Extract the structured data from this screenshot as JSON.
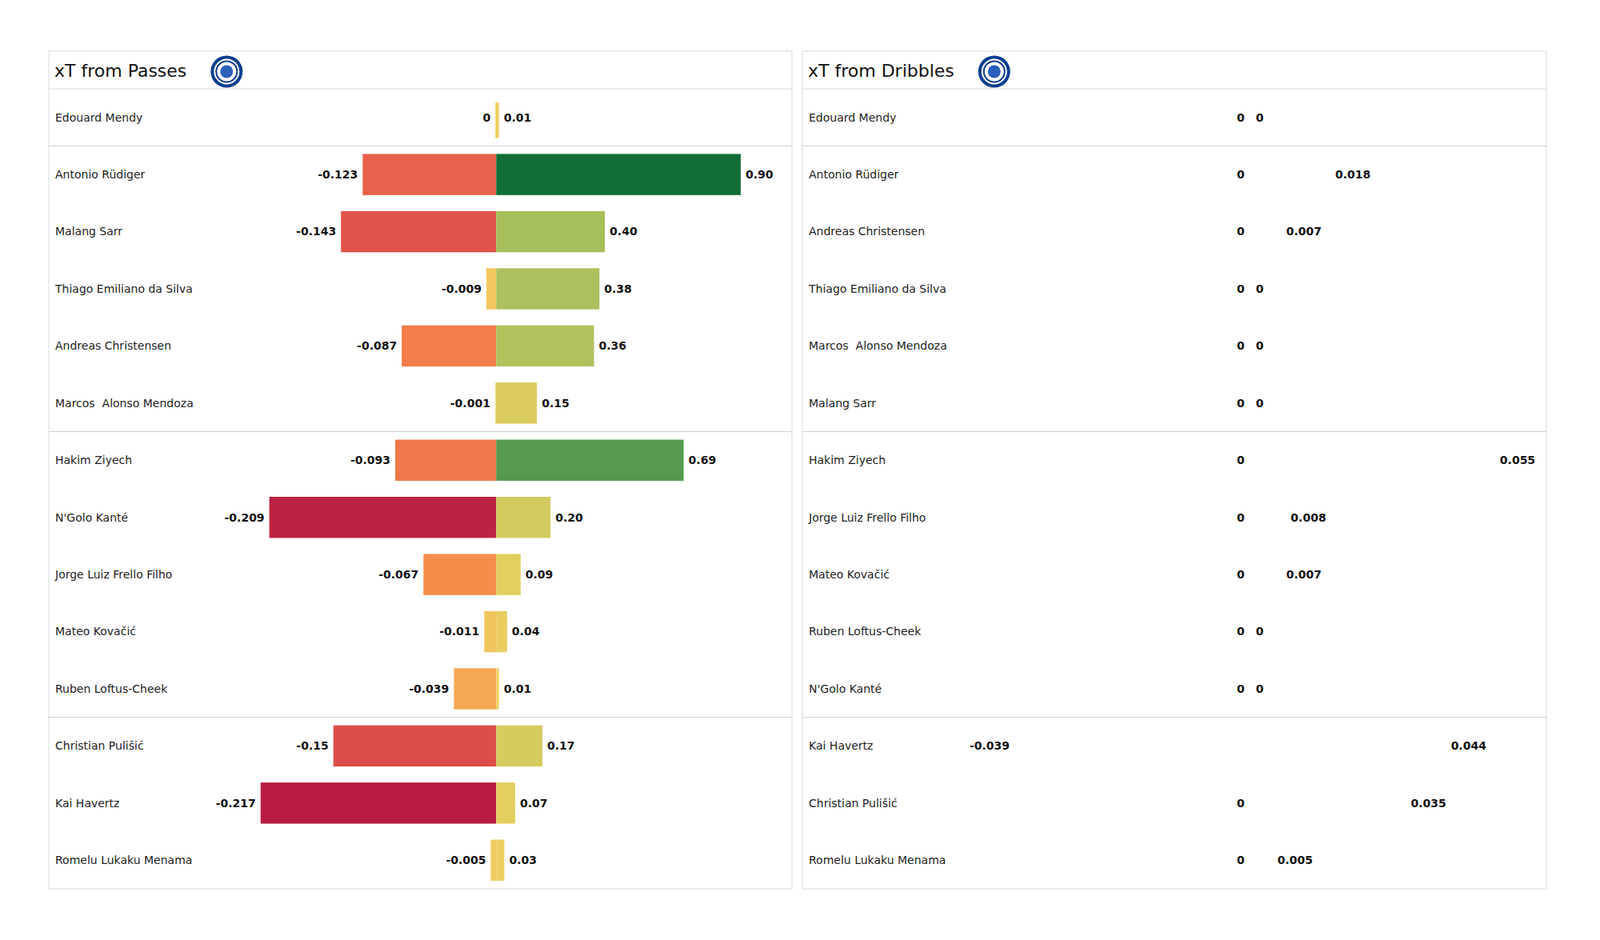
{
  "chart_data": [
    {
      "type": "bar",
      "orientation": "horizontal",
      "title": "xT from Passes",
      "data_labels": true,
      "tick_labels": "y",
      "categories": [
        "Edouard Mendy",
        "Antonio Rüdiger",
        "Malang Sarr",
        "Thiago Emiliano da Silva",
        "Andreas Christensen",
        "Marcos  Alonso Mendoza",
        "Hakim Ziyech",
        "N'Golo Kanté",
        "Jorge Luiz Frello Filho",
        "Mateo Kovačić",
        "Ruben Loftus-Cheek",
        "Christian Pulišić",
        "Kai Havertz",
        "Romelu Lukaku Menama"
      ],
      "series": [
        {
          "values": [
            0,
            -0.123,
            -0.143,
            -0.009,
            -0.087,
            -0.001,
            -0.093,
            -0.209,
            -0.067,
            -0.011,
            -0.039,
            -0.15,
            -0.217,
            -0.005
          ],
          "value_labels": [
            "0",
            "-0.123",
            "-0.143",
            "-0.009",
            "-0.087",
            "-0.001",
            "-0.093",
            "-0.209",
            "-0.067",
            "-0.011",
            "-0.039",
            "-0.15",
            "-0.217",
            "-0.005"
          ]
        },
        {
          "values": [
            0.01,
            0.9,
            0.4,
            0.38,
            0.36,
            0.15,
            0.69,
            0.2,
            0.09,
            0.04,
            0.01,
            0.17,
            0.07,
            0.03
          ],
          "value_labels": [
            "0.01",
            "0.90",
            "0.40",
            "0.38",
            "0.36",
            "0.15",
            "0.69",
            "0.20",
            "0.09",
            "0.04",
            "0.01",
            "0.17",
            "0.07",
            "0.03"
          ]
        }
      ]
    },
    {
      "type": "bar",
      "orientation": "horizontal",
      "title": "xT from Dribbles",
      "data_labels": true,
      "tick_labels": "y",
      "categories": [
        "Edouard Mendy",
        "Antonio Rüdiger",
        "Andreas Christensen",
        "Thiago Emiliano da Silva",
        "Marcos  Alonso Mendoza",
        "Malang Sarr",
        "Hakim Ziyech",
        "Jorge Luiz Frello Filho",
        "Mateo Kovačić",
        "Ruben Loftus-Cheek",
        "N'Golo Kanté",
        "Kai Havertz",
        "Christian Pulišić",
        "Romelu Lukaku Menama"
      ],
      "series": [
        {
          "values": [
            0,
            0,
            0,
            0,
            0,
            0,
            0,
            0,
            0,
            0,
            0,
            -0.039,
            0,
            0
          ],
          "value_labels": [
            "0",
            "0",
            "0",
            "0",
            "0",
            "0",
            "0",
            "0",
            "0",
            "0",
            "0",
            "-0.039",
            "0",
            "0"
          ]
        },
        {
          "values": [
            0,
            0.018,
            0.007,
            0,
            0,
            0,
            0.055,
            0.008,
            0.007,
            0,
            0,
            0.044,
            0.035,
            0.005
          ],
          "value_labels": [
            "0",
            "0.018",
            "0.007",
            "0",
            "0",
            "0",
            "0.055",
            "0.008",
            "0.007",
            "0",
            "0",
            "0.044",
            "0.035",
            "0.005"
          ]
        }
      ]
    }
  ]
}
